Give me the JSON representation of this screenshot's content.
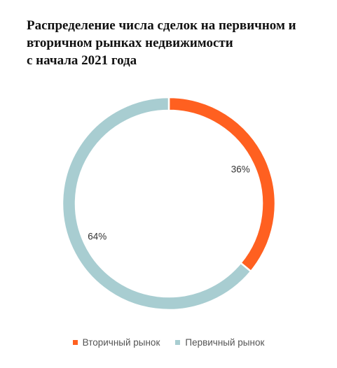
{
  "chart_data": {
    "type": "pie",
    "donut": true,
    "title_lines": [
      "Распределение числа сделок на первичном и",
      "вторичном рынках недвижимости",
      "с начала 2021 года"
    ],
    "categories": [
      "Вторичный рынок",
      "Первичный рынок"
    ],
    "values": [
      36,
      64
    ],
    "labels": [
      "36%",
      "64%"
    ],
    "colors": [
      "#ff6020",
      "#a8cdd1"
    ],
    "legend_position": "bottom"
  }
}
